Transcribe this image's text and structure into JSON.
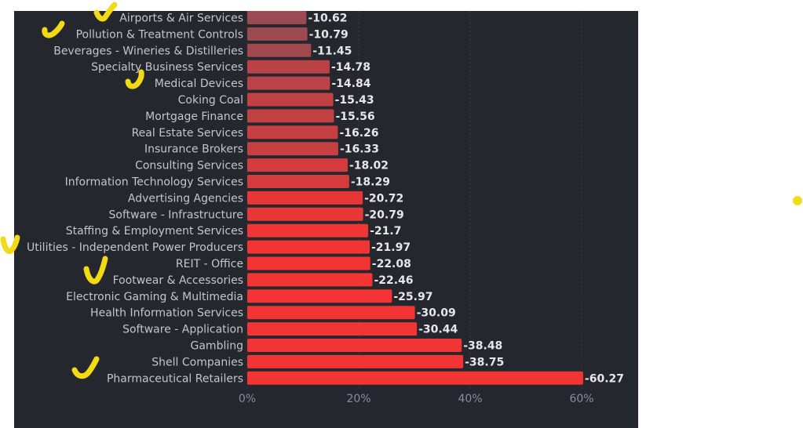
{
  "chart_data": {
    "type": "bar",
    "orientation": "horizontal",
    "title": "",
    "xlabel": "",
    "ylabel": "",
    "categories": [
      "Airports & Air Services",
      "Pollution & Treatment Controls",
      "Beverages - Wineries & Distilleries",
      "Specialty Business Services",
      "Medical Devices",
      "Coking Coal",
      "Mortgage Finance",
      "Real Estate Services",
      "Insurance Brokers",
      "Consulting Services",
      "Information Technology Services",
      "Advertising Agencies",
      "Software - Infrastructure",
      "Staffing & Employment Services",
      "Utilities - Independent Power Producers",
      "REIT - Office",
      "Footwear & Accessories",
      "Electronic Gaming & Multimedia",
      "Health Information Services",
      "Software - Application",
      "Gambling",
      "Shell Companies",
      "Pharmaceutical Retailers"
    ],
    "values": [
      -10.62,
      -10.79,
      -11.45,
      -14.78,
      -14.84,
      -15.43,
      -15.56,
      -16.26,
      -16.33,
      -18.02,
      -18.29,
      -20.72,
      -20.79,
      -21.7,
      -21.97,
      -22.08,
      -22.46,
      -25.97,
      -30.09,
      -30.44,
      -38.48,
      -38.75,
      -60.27
    ],
    "value_labels": [
      "-10.62",
      "-10.79",
      "-11.45",
      "-14.78",
      "-14.84",
      "-15.43",
      "-15.56",
      "-16.26",
      "-16.33",
      "-18.02",
      "-18.29",
      "-20.72",
      "-20.79",
      "-21.7",
      "-21.97",
      "-22.08",
      "-22.46",
      "-25.97",
      "-30.09",
      "-30.44",
      "-38.48",
      "-38.75",
      "-60.27"
    ],
    "x_ticks": [
      0,
      20,
      40,
      60
    ],
    "x_tick_labels": [
      "0%",
      "20%",
      "40%",
      "60%"
    ],
    "xlim": [
      0,
      70
    ],
    "grid": true,
    "colors": {
      "low": "#9a4a50",
      "high": "#f23434",
      "background": "#24272e"
    }
  }
}
